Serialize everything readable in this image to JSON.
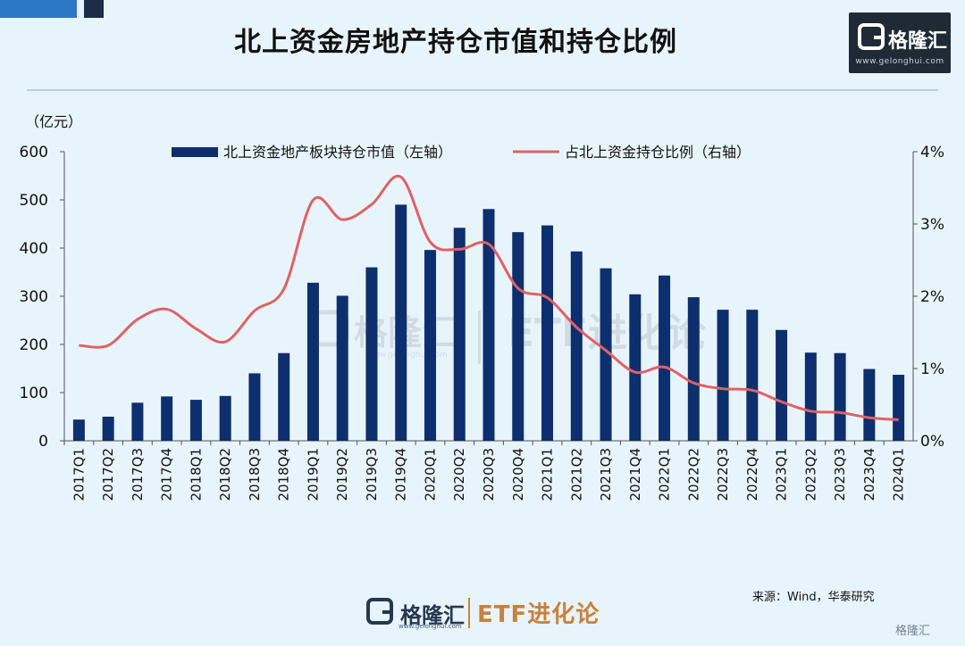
{
  "title": "北上资金房地产持仓市值和持仓比例",
  "brand": {
    "name": "格隆汇",
    "url": "www.gelonghui.com",
    "column": "ETF进化论",
    "watermark_name": "格隆汇",
    "watermark_column": "ETF进化论"
  },
  "source": "来源：Wind，华泰研究",
  "corner_mark": "格隆汇",
  "colors": {
    "bar": "#0d2f6e",
    "line": "#e06165",
    "axis": "#555555",
    "background": "#e8f4fc"
  },
  "chart_data": {
    "type": "bar",
    "categories": [
      "2017Q1",
      "2017Q2",
      "2017Q3",
      "2017Q4",
      "2018Q1",
      "2018Q2",
      "2018Q3",
      "2018Q4",
      "2019Q1",
      "2019Q2",
      "2019Q3",
      "2019Q4",
      "2020Q1",
      "2020Q2",
      "2020Q3",
      "2020Q4",
      "2021Q1",
      "2021Q2",
      "2021Q3",
      "2021Q4",
      "2022Q1",
      "2022Q2",
      "2022Q3",
      "2022Q4",
      "2023Q1",
      "2023Q2",
      "2023Q3",
      "2023Q4",
      "2024Q1"
    ],
    "series": [
      {
        "name": "北上资金地产板块持仓市值（左轴）",
        "type": "bar",
        "axis": "left",
        "values": [
          44,
          50,
          79,
          92,
          85,
          93,
          140,
          182,
          328,
          301,
          360,
          490,
          396,
          442,
          481,
          433,
          447,
          393,
          358,
          304,
          343,
          298,
          272,
          272,
          230,
          183,
          182,
          149,
          137
        ]
      },
      {
        "name": "占北上资金持仓比例（右轴）",
        "type": "line",
        "axis": "right",
        "values": [
          1.32,
          1.32,
          1.68,
          1.82,
          1.55,
          1.37,
          1.8,
          2.1,
          3.33,
          3.06,
          3.27,
          3.65,
          2.75,
          2.65,
          2.72,
          2.11,
          1.98,
          1.57,
          1.25,
          0.95,
          1.02,
          0.8,
          0.72,
          0.7,
          0.54,
          0.41,
          0.39,
          0.32,
          0.29
        ]
      }
    ],
    "left_axis": {
      "unit": "（亿元）",
      "ylim": [
        0,
        600
      ],
      "ticks": [
        0,
        100,
        200,
        300,
        400,
        500,
        600
      ]
    },
    "right_axis": {
      "ylim": [
        0,
        4
      ],
      "ticks": [
        0,
        1,
        2,
        3,
        4
      ],
      "tick_labels": [
        "0%",
        "1%",
        "2%",
        "3%",
        "4%"
      ]
    },
    "legend_placement": "top-center",
    "grid": false
  }
}
